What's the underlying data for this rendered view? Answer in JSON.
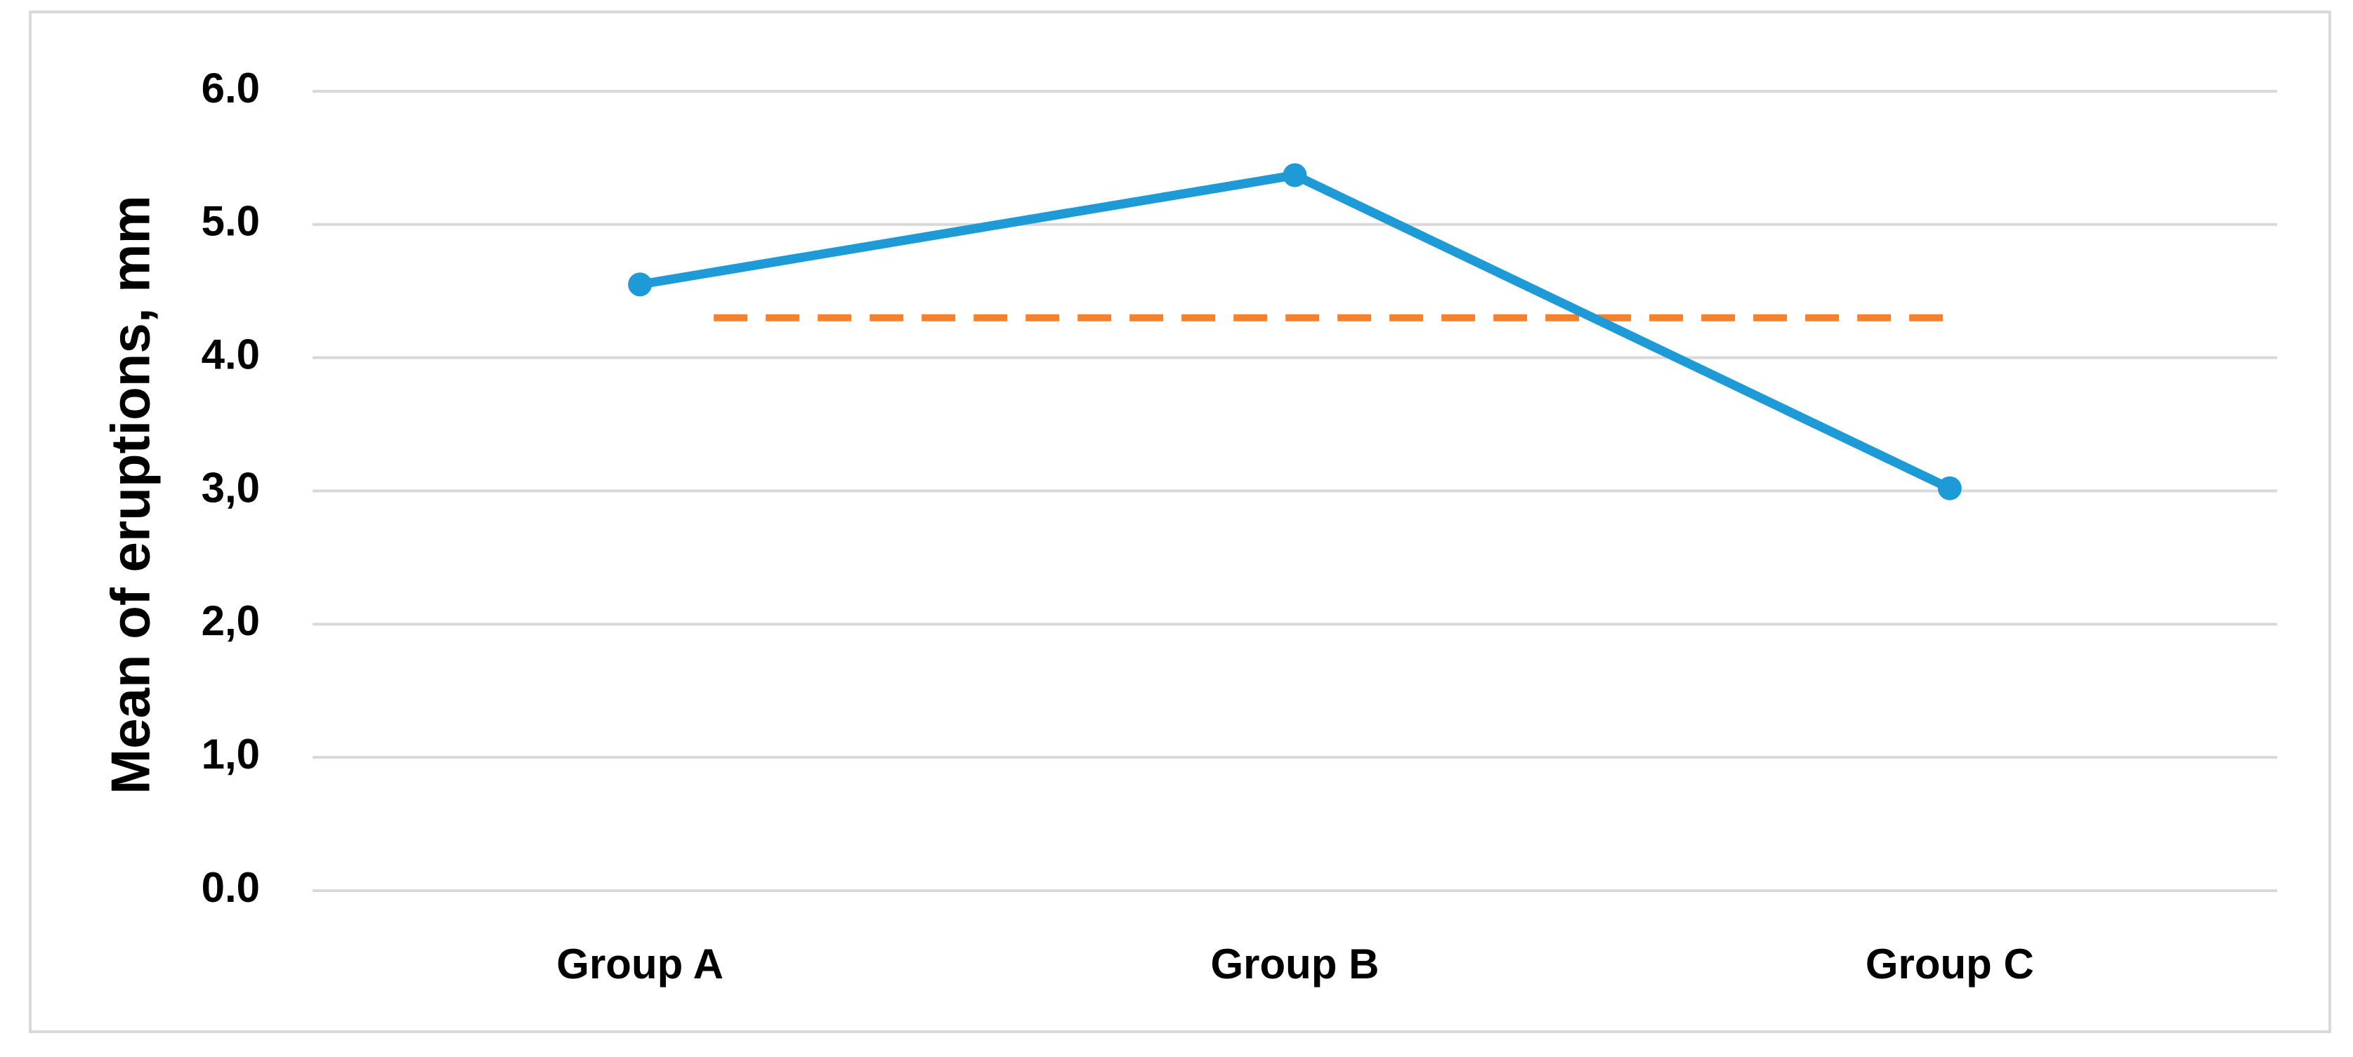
{
  "chart_data": {
    "type": "line",
    "y_axis_label": "Mean of eruptions, mm",
    "categories": [
      "Group A",
      "Group B",
      "Group C"
    ],
    "series": [
      {
        "color": "#1e9bd7",
        "values": [
          4.55,
          5.37,
          3.02
        ]
      }
    ],
    "reference_line": {
      "value": 4.3,
      "color": "#f4812b",
      "style": "dashed"
    },
    "ylim": [
      0,
      6
    ],
    "yticks": [
      {
        "value": 0,
        "label": "0.0"
      },
      {
        "value": 1,
        "label": "1,0"
      },
      {
        "value": 2,
        "label": "2,0"
      },
      {
        "value": 3,
        "label": "3,0"
      },
      {
        "value": 4,
        "label": "4.0"
      },
      {
        "value": 5,
        "label": "5.0"
      },
      {
        "value": 6,
        "label": "6.0"
      }
    ],
    "grid": true
  }
}
